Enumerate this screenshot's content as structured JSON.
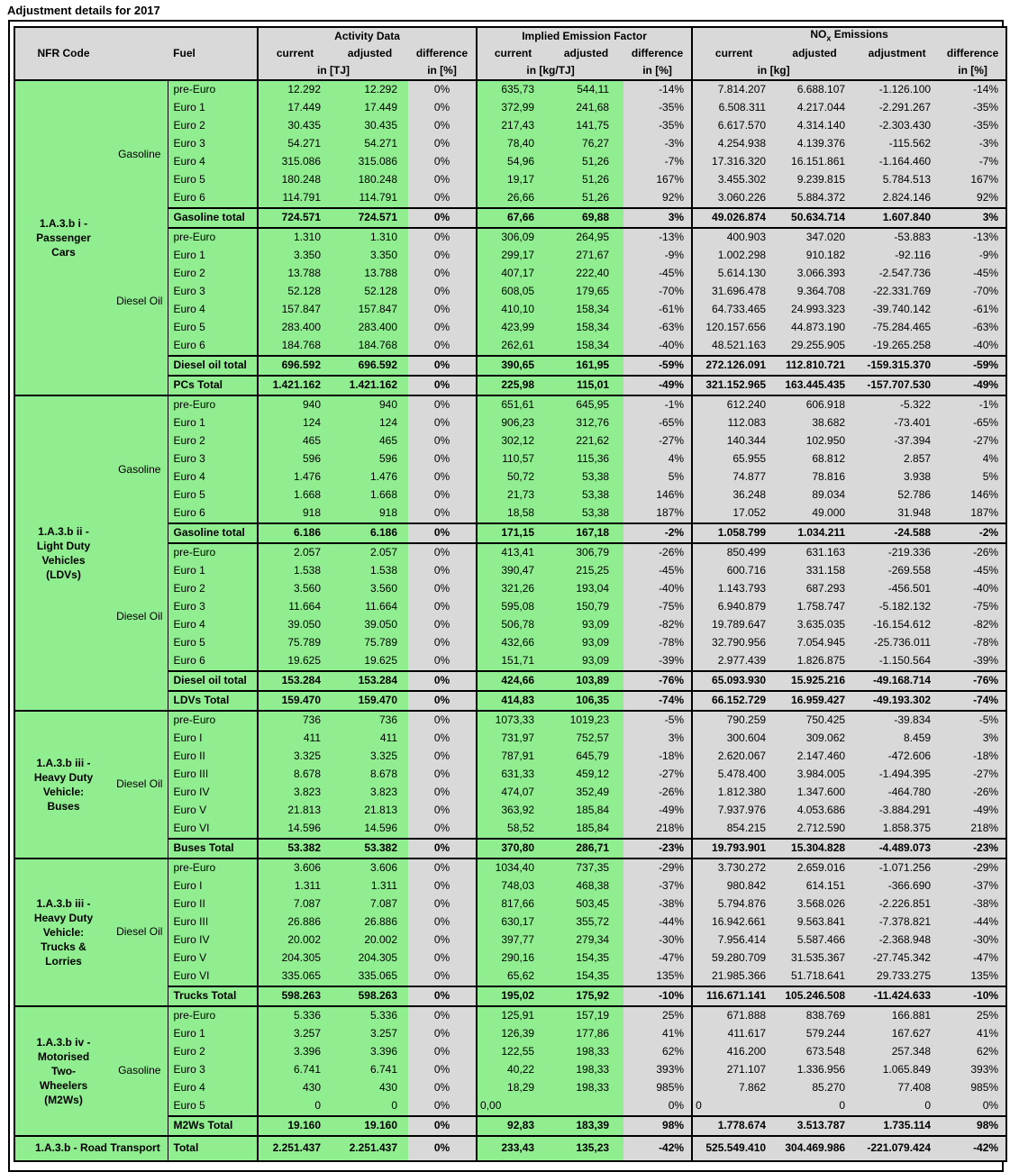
{
  "title": "Adjustment details for 2017",
  "colors": {
    "green": "#90EE90",
    "gray": "#D9D9D9"
  },
  "header": {
    "nfr": "NFR Code",
    "fuel": "Fuel",
    "groups": [
      {
        "label": "Activity Data",
        "cols": [
          "current",
          "adjusted",
          "difference"
        ],
        "units": [
          "in [TJ]",
          "in [%]"
        ]
      },
      {
        "label": "Implied Emission Factor",
        "cols": [
          "current",
          "adjusted",
          "difference"
        ],
        "units": [
          "in [kg/TJ]",
          "in [%]"
        ]
      },
      {
        "label_prefix": "NO",
        "label_sub": "x",
        "label_suffix": " Emissions",
        "cols": [
          "current",
          "adjusted",
          "adjustment",
          "difference"
        ],
        "units": [
          "in [kg]",
          "",
          "in [%]"
        ]
      }
    ]
  },
  "sections": [
    {
      "nfr_lines": [
        "1.A.3.b i -",
        "Passenger",
        "Cars"
      ],
      "fuel_groups": [
        {
          "fuel": "Gasoline",
          "rows": [
            [
              "pre-Euro",
              "12.292",
              "12.292",
              "0%",
              "635,73",
              "544,11",
              "-14%",
              "7.814.207",
              "6.688.107",
              "-1.126.100",
              "-14%"
            ],
            [
              "Euro 1",
              "17.449",
              "17.449",
              "0%",
              "372,99",
              "241,68",
              "-35%",
              "6.508.311",
              "4.217.044",
              "-2.291.267",
              "-35%"
            ],
            [
              "Euro 2",
              "30.435",
              "30.435",
              "0%",
              "217,43",
              "141,75",
              "-35%",
              "6.617.570",
              "4.314.140",
              "-2.303.430",
              "-35%"
            ],
            [
              "Euro 3",
              "54.271",
              "54.271",
              "0%",
              "78,40",
              "76,27",
              "-3%",
              "4.254.938",
              "4.139.376",
              "-115.562",
              "-3%"
            ],
            [
              "Euro 4",
              "315.086",
              "315.086",
              "0%",
              "54,96",
              "51,26",
              "-7%",
              "17.316.320",
              "16.151.861",
              "-1.164.460",
              "-7%"
            ],
            [
              "Euro 5",
              "180.248",
              "180.248",
              "0%",
              "19,17",
              "51,26",
              "167%",
              "3.455.302",
              "9.239.815",
              "5.784.513",
              "167%"
            ],
            [
              "Euro 6",
              "114.791",
              "114.791",
              "0%",
              "26,66",
              "51,26",
              "92%",
              "3.060.226",
              "5.884.372",
              "2.824.146",
              "92%"
            ]
          ],
          "total": [
            "Gasoline total",
            "724.571",
            "724.571",
            "0%",
            "67,66",
            "69,88",
            "3%",
            "49.026.874",
            "50.634.714",
            "1.607.840",
            "3%"
          ]
        },
        {
          "fuel": "Diesel Oil",
          "rows": [
            [
              "pre-Euro",
              "1.310",
              "1.310",
              "0%",
              "306,09",
              "264,95",
              "-13%",
              "400.903",
              "347.020",
              "-53.883",
              "-13%"
            ],
            [
              "Euro 1",
              "3.350",
              "3.350",
              "0%",
              "299,17",
              "271,67",
              "-9%",
              "1.002.298",
              "910.182",
              "-92.116",
              "-9%"
            ],
            [
              "Euro 2",
              "13.788",
              "13.788",
              "0%",
              "407,17",
              "222,40",
              "-45%",
              "5.614.130",
              "3.066.393",
              "-2.547.736",
              "-45%"
            ],
            [
              "Euro 3",
              "52.128",
              "52.128",
              "0%",
              "608,05",
              "179,65",
              "-70%",
              "31.696.478",
              "9.364.708",
              "-22.331.769",
              "-70%"
            ],
            [
              "Euro 4",
              "157.847",
              "157.847",
              "0%",
              "410,10",
              "158,34",
              "-61%",
              "64.733.465",
              "24.993.323",
              "-39.740.142",
              "-61%"
            ],
            [
              "Euro 5",
              "283.400",
              "283.400",
              "0%",
              "423,99",
              "158,34",
              "-63%",
              "120.157.656",
              "44.873.190",
              "-75.284.465",
              "-63%"
            ],
            [
              "Euro 6",
              "184.768",
              "184.768",
              "0%",
              "262,61",
              "158,34",
              "-40%",
              "48.521.163",
              "29.255.905",
              "-19.265.258",
              "-40%"
            ]
          ],
          "total": [
            "Diesel oil total",
            "696.592",
            "696.592",
            "0%",
            "390,65",
            "161,95",
            "-59%",
            "272.126.091",
            "112.810.721",
            "-159.315.370",
            "-59%"
          ]
        }
      ],
      "section_total": [
        "PCs Total",
        "1.421.162",
        "1.421.162",
        "0%",
        "225,98",
        "115,01",
        "-49%",
        "321.152.965",
        "163.445.435",
        "-157.707.530",
        "-49%"
      ]
    },
    {
      "nfr_lines": [
        "1.A.3.b ii -",
        "Light Duty",
        "Vehicles",
        "(LDVs)"
      ],
      "fuel_groups": [
        {
          "fuel": "Gasoline",
          "rows": [
            [
              "pre-Euro",
              "940",
              "940",
              "0%",
              "651,61",
              "645,95",
              "-1%",
              "612.240",
              "606.918",
              "-5.322",
              "-1%"
            ],
            [
              "Euro 1",
              "124",
              "124",
              "0%",
              "906,23",
              "312,76",
              "-65%",
              "112.083",
              "38.682",
              "-73.401",
              "-65%"
            ],
            [
              "Euro 2",
              "465",
              "465",
              "0%",
              "302,12",
              "221,62",
              "-27%",
              "140.344",
              "102.950",
              "-37.394",
              "-27%"
            ],
            [
              "Euro 3",
              "596",
              "596",
              "0%",
              "110,57",
              "115,36",
              "4%",
              "65.955",
              "68.812",
              "2.857",
              "4%"
            ],
            [
              "Euro 4",
              "1.476",
              "1.476",
              "0%",
              "50,72",
              "53,38",
              "5%",
              "74.877",
              "78.816",
              "3.938",
              "5%"
            ],
            [
              "Euro 5",
              "1.668",
              "1.668",
              "0%",
              "21,73",
              "53,38",
              "146%",
              "36.248",
              "89.034",
              "52.786",
              "146%"
            ],
            [
              "Euro 6",
              "918",
              "918",
              "0%",
              "18,58",
              "53,38",
              "187%",
              "17.052",
              "49.000",
              "31.948",
              "187%"
            ]
          ],
          "total": [
            "Gasoline total",
            "6.186",
            "6.186",
            "0%",
            "171,15",
            "167,18",
            "-2%",
            "1.058.799",
            "1.034.211",
            "-24.588",
            "-2%"
          ]
        },
        {
          "fuel": "Diesel Oil",
          "rows": [
            [
              "pre-Euro",
              "2.057",
              "2.057",
              "0%",
              "413,41",
              "306,79",
              "-26%",
              "850.499",
              "631.163",
              "-219.336",
              "-26%"
            ],
            [
              "Euro 1",
              "1.538",
              "1.538",
              "0%",
              "390,47",
              "215,25",
              "-45%",
              "600.716",
              "331.158",
              "-269.558",
              "-45%"
            ],
            [
              "Euro 2",
              "3.560",
              "3.560",
              "0%",
              "321,26",
              "193,04",
              "-40%",
              "1.143.793",
              "687.293",
              "-456.501",
              "-40%"
            ],
            [
              "Euro 3",
              "11.664",
              "11.664",
              "0%",
              "595,08",
              "150,79",
              "-75%",
              "6.940.879",
              "1.758.747",
              "-5.182.132",
              "-75%"
            ],
            [
              "Euro 4",
              "39.050",
              "39.050",
              "0%",
              "506,78",
              "93,09",
              "-82%",
              "19.789.647",
              "3.635.035",
              "-16.154.612",
              "-82%"
            ],
            [
              "Euro 5",
              "75.789",
              "75.789",
              "0%",
              "432,66",
              "93,09",
              "-78%",
              "32.790.956",
              "7.054.945",
              "-25.736.011",
              "-78%"
            ],
            [
              "Euro 6",
              "19.625",
              "19.625",
              "0%",
              "151,71",
              "93,09",
              "-39%",
              "2.977.439",
              "1.826.875",
              "-1.150.564",
              "-39%"
            ]
          ],
          "total": [
            "Diesel oil total",
            "153.284",
            "153.284",
            "0%",
            "424,66",
            "103,89",
            "-76%",
            "65.093.930",
            "15.925.216",
            "-49.168.714",
            "-76%"
          ]
        }
      ],
      "section_total": [
        "LDVs Total",
        "159.470",
        "159.470",
        "0%",
        "414,83",
        "106,35",
        "-74%",
        "66.152.729",
        "16.959.427",
        "-49.193.302",
        "-74%"
      ]
    },
    {
      "nfr_lines": [
        "1.A.3.b iii -",
        "Heavy Duty",
        "Vehicle:",
        "Buses"
      ],
      "fuel_groups": [
        {
          "fuel": "Diesel Oil",
          "rows": [
            [
              "pre-Euro",
              "736",
              "736",
              "0%",
              "1073,33",
              "1019,23",
              "-5%",
              "790.259",
              "750.425",
              "-39.834",
              "-5%"
            ],
            [
              "Euro I",
              "411",
              "411",
              "0%",
              "731,97",
              "752,57",
              "3%",
              "300.604",
              "309.062",
              "8.459",
              "3%"
            ],
            [
              "Euro II",
              "3.325",
              "3.325",
              "0%",
              "787,91",
              "645,79",
              "-18%",
              "2.620.067",
              "2.147.460",
              "-472.606",
              "-18%"
            ],
            [
              "Euro III",
              "8.678",
              "8.678",
              "0%",
              "631,33",
              "459,12",
              "-27%",
              "5.478.400",
              "3.984.005",
              "-1.494.395",
              "-27%"
            ],
            [
              "Euro IV",
              "3.823",
              "3.823",
              "0%",
              "474,07",
              "352,49",
              "-26%",
              "1.812.380",
              "1.347.600",
              "-464.780",
              "-26%"
            ],
            [
              "Euro V",
              "21.813",
              "21.813",
              "0%",
              "363,92",
              "185,84",
              "-49%",
              "7.937.976",
              "4.053.686",
              "-3.884.291",
              "-49%"
            ],
            [
              "Euro VI",
              "14.596",
              "14.596",
              "0%",
              "58,52",
              "185,84",
              "218%",
              "854.215",
              "2.712.590",
              "1.858.375",
              "218%"
            ]
          ],
          "total": [
            "Buses Total",
            "53.382",
            "53.382",
            "0%",
            "370,80",
            "286,71",
            "-23%",
            "19.793.901",
            "15.304.828",
            "-4.489.073",
            "-23%"
          ]
        }
      ],
      "section_total": null
    },
    {
      "nfr_lines": [
        "1.A.3.b iii -",
        "Heavy Duty",
        "Vehicle:",
        "Trucks &",
        "Lorries"
      ],
      "fuel_groups": [
        {
          "fuel": "Diesel Oil",
          "rows": [
            [
              "pre-Euro",
              "3.606",
              "3.606",
              "0%",
              "1034,40",
              "737,35",
              "-29%",
              "3.730.272",
              "2.659.016",
              "-1.071.256",
              "-29%"
            ],
            [
              "Euro I",
              "1.311",
              "1.311",
              "0%",
              "748,03",
              "468,38",
              "-37%",
              "980.842",
              "614.151",
              "-366.690",
              "-37%"
            ],
            [
              "Euro II",
              "7.087",
              "7.087",
              "0%",
              "817,66",
              "503,45",
              "-38%",
              "5.794.876",
              "3.568.026",
              "-2.226.851",
              "-38%"
            ],
            [
              "Euro III",
              "26.886",
              "26.886",
              "0%",
              "630,17",
              "355,72",
              "-44%",
              "16.942.661",
              "9.563.841",
              "-7.378.821",
              "-44%"
            ],
            [
              "Euro IV",
              "20.002",
              "20.002",
              "0%",
              "397,77",
              "279,34",
              "-30%",
              "7.956.414",
              "5.587.466",
              "-2.368.948",
              "-30%"
            ],
            [
              "Euro V",
              "204.305",
              "204.305",
              "0%",
              "290,16",
              "154,35",
              "-47%",
              "59.280.709",
              "31.535.367",
              "-27.745.342",
              "-47%"
            ],
            [
              "Euro VI",
              "335.065",
              "335.065",
              "0%",
              "65,62",
              "154,35",
              "135%",
              "21.985.366",
              "51.718.641",
              "29.733.275",
              "135%"
            ]
          ],
          "total": [
            "Trucks Total",
            "598.263",
            "598.263",
            "0%",
            "195,02",
            "175,92",
            "-10%",
            "116.671.141",
            "105.246.508",
            "-11.424.633",
            "-10%"
          ]
        }
      ],
      "section_total": null
    },
    {
      "nfr_lines": [
        "1.A.3.b iv -",
        "Motorised",
        "Two-",
        "Wheelers",
        "(M2Ws)"
      ],
      "fuel_groups": [
        {
          "fuel": "Gasoline",
          "rows": [
            [
              "pre-Euro",
              "5.336",
              "5.336",
              "0%",
              "125,91",
              "157,19",
              "25%",
              "671.888",
              "838.769",
              "166.881",
              "25%"
            ],
            [
              "Euro 1",
              "3.257",
              "3.257",
              "0%",
              "126,39",
              "177,86",
              "41%",
              "411.617",
              "579.244",
              "167.627",
              "41%"
            ],
            [
              "Euro 2",
              "3.396",
              "3.396",
              "0%",
              "122,55",
              "198,33",
              "62%",
              "416.200",
              "673.548",
              "257.348",
              "62%"
            ],
            [
              "Euro 3",
              "6.741",
              "6.741",
              "0%",
              "40,22",
              "198,33",
              "393%",
              "271.107",
              "1.336.956",
              "1.065.849",
              "393%"
            ],
            [
              "Euro 4",
              "430",
              "430",
              "0%",
              "18,29",
              "198,33",
              "985%",
              "7.862",
              "85.270",
              "77.408",
              "985%"
            ],
            {
              "cells": [
                "Euro 5",
                "0",
                "0",
                "0%",
                "0,00",
                "",
                "0%",
                "0",
                "0",
                "0",
                "0%"
              ],
              "left": [
                4,
                7
              ]
            }
          ],
          "total": [
            "M2Ws Total",
            "19.160",
            "19.160",
            "0%",
            "92,83",
            "183,39",
            "98%",
            "1.778.674",
            "3.513.787",
            "1.735.114",
            "98%"
          ]
        }
      ],
      "section_total": null
    }
  ],
  "grand_total": {
    "nfr_label": "1.A.3.b - Road Transport",
    "row_label": "Total",
    "cells": [
      "2.251.437",
      "2.251.437",
      "0%",
      "233,43",
      "135,23",
      "-42%",
      "525.549.410",
      "304.469.986",
      "-221.079.424",
      "-42%"
    ]
  }
}
